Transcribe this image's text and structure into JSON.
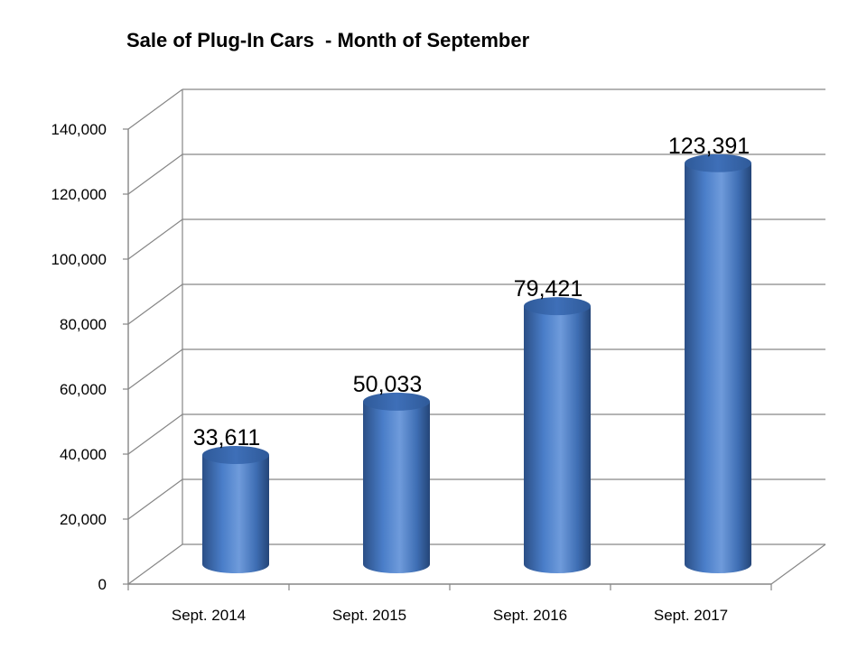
{
  "chart_data": {
    "type": "bar",
    "title": "Sale of Plug-In Cars  - Month of September",
    "categories": [
      "Sept. 2014",
      "Sept. 2015",
      "Sept. 2016",
      "Sept. 2017"
    ],
    "values": [
      33611,
      50033,
      79421,
      123391
    ],
    "data_labels": [
      "33,611",
      "50,033",
      "79,421",
      "123,391"
    ],
    "ylim": [
      0,
      140000
    ],
    "yticks": [
      0,
      20000,
      40000,
      60000,
      80000,
      100000,
      120000,
      140000
    ],
    "ytick_labels": [
      "0",
      "20,000",
      "40,000",
      "60,000",
      "80,000",
      "100,000",
      "120,000",
      "140,000"
    ],
    "xlabel": "",
    "ylabel": "",
    "style": "3d-cylinder",
    "grid": true,
    "legend": "none",
    "colors": {
      "bar_dark": "#2B4F86",
      "bar_mid": "#4A7EC9",
      "bar_light": "#7FA8E0",
      "gridline": "#868686"
    }
  }
}
